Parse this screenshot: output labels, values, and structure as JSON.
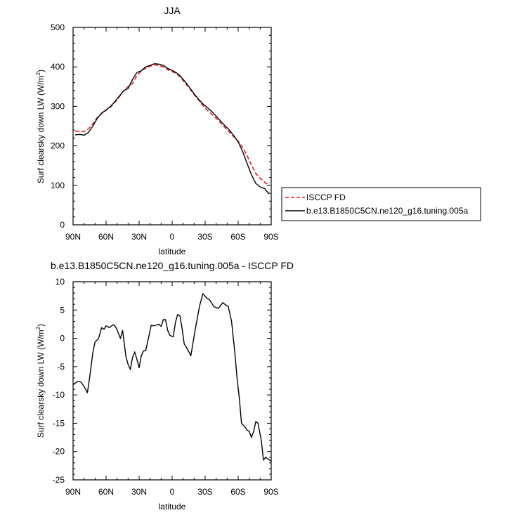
{
  "chart_data": [
    {
      "type": "line",
      "title": "JJA",
      "xlabel": "latitude",
      "ylabel": "Surf clearsky down LW (W/m",
      "ylabel_sup": "2",
      "ylabel_close": ")",
      "xlim": [
        90,
        -90
      ],
      "ylim": [
        0,
        500
      ],
      "x_ticks": [
        90,
        60,
        30,
        0,
        -30,
        -60,
        -90
      ],
      "x_tick_labels": [
        "90N",
        "60N",
        "30N",
        "0",
        "30S",
        "60S",
        "90S"
      ],
      "y_ticks": [
        0,
        100,
        200,
        300,
        400,
        500
      ],
      "y_tick_labels": [
        "0",
        "100",
        "200",
        "300",
        "400",
        "500"
      ],
      "legend_position": "outside-right",
      "series": [
        {
          "name": "ISCCP FD",
          "color": "#e41a1c",
          "dash": "dashed",
          "x": [
            88,
            84,
            80,
            76,
            72,
            68,
            64,
            60,
            56,
            52,
            48,
            44,
            40,
            36,
            32,
            28,
            24,
            20,
            16,
            12,
            8,
            4,
            0,
            -4,
            -8,
            -12,
            -16,
            -20,
            -24,
            -28,
            -32,
            -36,
            -40,
            -44,
            -48,
            -52,
            -56,
            -60,
            -64,
            -68,
            -72,
            -76,
            -80,
            -84,
            -88
          ],
          "y": [
            237,
            237,
            236,
            243,
            256,
            272,
            282,
            290,
            298,
            310,
            324,
            340,
            350,
            358,
            378,
            390,
            397,
            402,
            405,
            404,
            400,
            393,
            388,
            383,
            373,
            358,
            345,
            330,
            316,
            302,
            290,
            280,
            270,
            258,
            246,
            235,
            223,
            212,
            196,
            176,
            152,
            130,
            118,
            108,
            100
          ]
        },
        {
          "name": "b.e13.B1850C5CN.ne120_g16.tuning.005a",
          "color": "#000000",
          "dash": "solid",
          "x": [
            88,
            84,
            80,
            76,
            72,
            68,
            64,
            60,
            56,
            52,
            48,
            44,
            40,
            36,
            32,
            28,
            24,
            20,
            16,
            12,
            8,
            4,
            0,
            -4,
            -8,
            -12,
            -16,
            -20,
            -24,
            -28,
            -32,
            -36,
            -40,
            -44,
            -48,
            -52,
            -56,
            -60,
            -64,
            -68,
            -72,
            -76,
            -80,
            -84,
            -88
          ],
          "y": [
            228,
            229,
            227,
            234,
            250,
            270,
            283,
            291,
            300,
            312,
            326,
            340,
            345,
            368,
            386,
            390,
            400,
            404,
            408,
            407,
            404,
            396,
            391,
            385,
            375,
            362,
            347,
            332,
            318,
            306,
            297,
            287,
            275,
            263,
            251,
            240,
            226,
            210,
            186,
            156,
            127,
            105,
            96,
            92,
            78
          ]
        }
      ]
    },
    {
      "type": "line",
      "title": "b.e13.B1850C5CN.ne120_g16.tuning.005a - ISCCP FD",
      "xlabel": "latitude",
      "ylabel": "Surf clearsky down LW (W/m",
      "ylabel_sup": "2",
      "ylabel_close": ")",
      "xlim": [
        90,
        -90
      ],
      "ylim": [
        -25,
        10
      ],
      "x_ticks": [
        90,
        60,
        30,
        0,
        -30,
        -60,
        -90
      ],
      "x_tick_labels": [
        "90N",
        "60N",
        "30N",
        "0",
        "30S",
        "60S",
        "90S"
      ],
      "y_ticks": [
        10,
        5,
        0,
        -5,
        -10,
        -15,
        -20,
        -25
      ],
      "y_tick_labels": [
        "10",
        "5",
        "0",
        "-5",
        "-10",
        "-15",
        "-20",
        "-25"
      ],
      "series": [
        {
          "name": "",
          "color": "#000000",
          "dash": "solid",
          "x": [
            90,
            86,
            83,
            80,
            77,
            75,
            72,
            70,
            67,
            64,
            62,
            60,
            57,
            55,
            53,
            51,
            49,
            47,
            45,
            42,
            40,
            38,
            36,
            34,
            32,
            30,
            28,
            26,
            24,
            21,
            19,
            17,
            15,
            12,
            10,
            8,
            6,
            4,
            2,
            -1,
            -3,
            -5,
            -7,
            -9,
            -11,
            -13,
            -15,
            -17,
            -21,
            -25,
            -28,
            -31,
            -34,
            -38,
            -42,
            -46,
            -48,
            -51,
            -54,
            -57,
            -59,
            -61,
            -63,
            -66,
            -68,
            -70,
            -72,
            -74,
            -76,
            -78,
            -81,
            -83,
            -85,
            -87,
            -90
          ],
          "y": [
            -8.2,
            -7.6,
            -7.7,
            -8.5,
            -9.6,
            -7.0,
            -2.5,
            -0.6,
            -0.1,
            1.9,
            1.6,
            2.2,
            1.9,
            2.2,
            2.4,
            1.9,
            1.0,
            0.0,
            1.4,
            -3.2,
            -4.6,
            -5.5,
            -3.4,
            -2.4,
            -3.7,
            -5.2,
            -3.1,
            -2.2,
            -2.2,
            0.5,
            2.3,
            2.2,
            2.3,
            2.5,
            2.1,
            3.3,
            3.3,
            1.4,
            0.5,
            0.3,
            2.8,
            4.2,
            4.0,
            1.8,
            -1.0,
            -1.6,
            -2.3,
            -3.1,
            1.6,
            5.8,
            7.9,
            7.2,
            6.8,
            5.6,
            5.3,
            6.3,
            6.0,
            5.6,
            3.0,
            -2.6,
            -7.0,
            -10.5,
            -15.0,
            -15.6,
            -16.2,
            -16.4,
            -17.5,
            -16.5,
            -14.7,
            -15.0,
            -18.0,
            -21.5,
            -21.0,
            -21.3,
            -21.7
          ]
        }
      ]
    }
  ]
}
